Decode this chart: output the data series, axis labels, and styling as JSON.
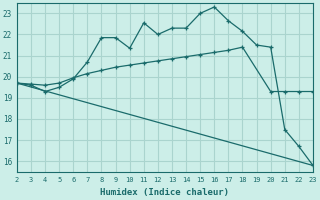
{
  "xlabel": "Humidex (Indice chaleur)",
  "bg_color": "#cceee8",
  "grid_color": "#aad4ce",
  "line_color": "#1a6b6b",
  "xlim": [
    2,
    23
  ],
  "ylim": [
    15.5,
    23.5
  ],
  "xticks": [
    2,
    3,
    4,
    5,
    6,
    7,
    8,
    9,
    10,
    11,
    12,
    13,
    14,
    15,
    16,
    17,
    18,
    19,
    20,
    21,
    22,
    23
  ],
  "yticks": [
    16,
    17,
    18,
    19,
    20,
    21,
    22,
    23
  ],
  "line1_x": [
    2,
    3,
    4,
    5,
    6,
    7,
    8,
    9,
    10,
    11,
    12,
    13,
    14,
    15,
    16,
    17,
    18,
    19,
    20,
    21,
    22,
    23
  ],
  "line1_y": [
    19.7,
    19.6,
    19.3,
    19.5,
    19.9,
    20.7,
    21.85,
    21.85,
    21.35,
    22.55,
    22.0,
    22.3,
    22.3,
    23.0,
    23.3,
    22.65,
    22.15,
    21.5,
    21.4,
    17.5,
    16.7,
    15.8
  ],
  "line2_x": [
    2,
    3,
    4,
    5,
    6,
    7,
    8,
    9,
    10,
    11,
    12,
    13,
    14,
    15,
    16,
    17,
    18,
    20,
    21,
    22,
    23
  ],
  "line2_y": [
    19.7,
    19.65,
    19.6,
    19.7,
    19.95,
    20.15,
    20.3,
    20.45,
    20.55,
    20.65,
    20.75,
    20.85,
    20.95,
    21.05,
    21.15,
    21.25,
    21.4,
    19.3,
    19.3,
    19.3,
    19.3
  ],
  "line3_x": [
    2,
    23
  ],
  "line3_y": [
    19.7,
    15.8
  ]
}
